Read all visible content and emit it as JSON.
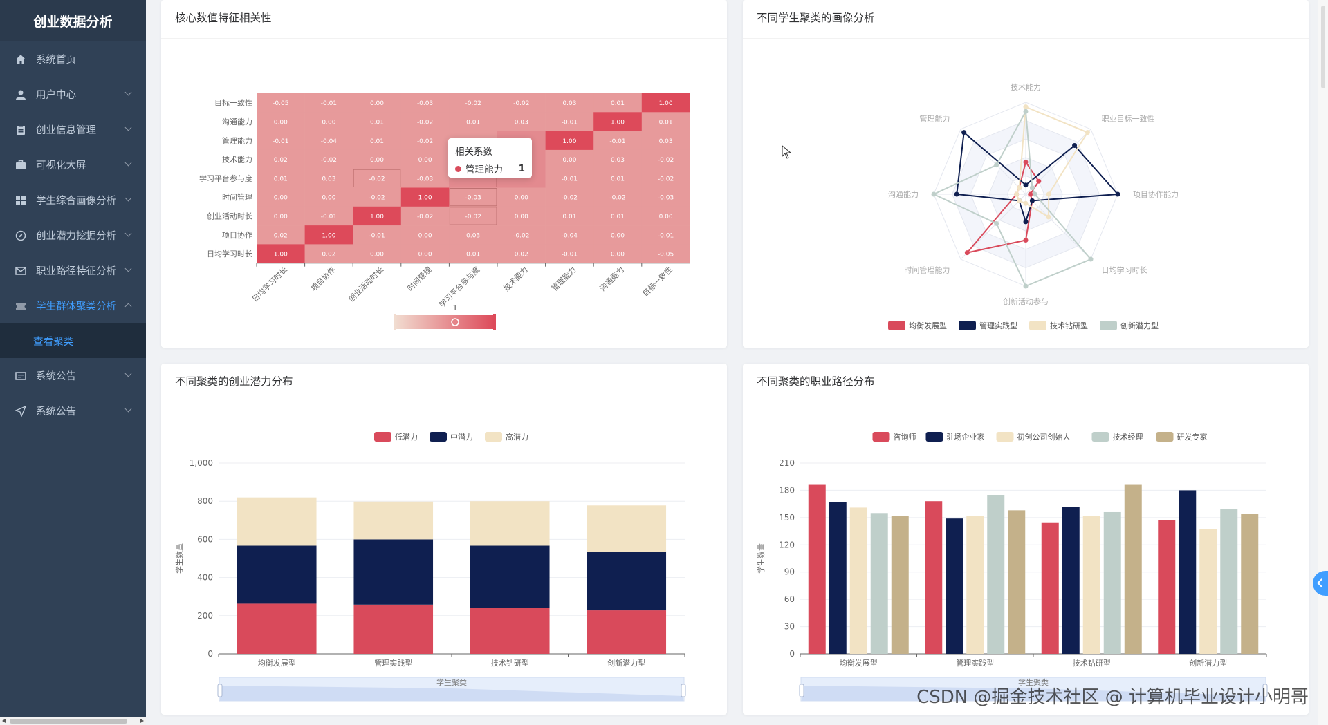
{
  "sidebar": {
    "logo": "创业数据分析",
    "items": [
      {
        "label": "系统首页",
        "icon": "home-icon",
        "chevron": false
      },
      {
        "label": "用户中心",
        "icon": "user-icon",
        "chevron": true
      },
      {
        "label": "创业信息管理",
        "icon": "clipboard-icon",
        "chevron": true
      },
      {
        "label": "可视化大屏",
        "icon": "briefcase-icon",
        "chevron": true
      },
      {
        "label": "学生综合画像分析",
        "icon": "grid-icon",
        "chevron": true
      },
      {
        "label": "创业潜力挖掘分析",
        "icon": "compass-icon",
        "chevron": true
      },
      {
        "label": "职业路径特征分析",
        "icon": "mail-icon",
        "chevron": true
      },
      {
        "label": "学生群体聚类分析",
        "icon": "ticket-icon",
        "chevron": true,
        "active": true
      }
    ],
    "submenu": "查看聚类",
    "items_after": [
      {
        "label": "系统公告",
        "icon": "notice-icon",
        "chevron": true
      },
      {
        "label": "系统公告",
        "icon": "send-icon",
        "chevron": true
      }
    ]
  },
  "cards": {
    "heatmap_title": "核心数值特征相关性",
    "radar_title": "不同学生聚类的画像分析",
    "stacked_title": "不同聚类的创业潜力分布",
    "grouped_title": "不同聚类的职业路径分布"
  },
  "tooltip": {
    "title": "相关系数",
    "name": "管理能力",
    "value": "1"
  },
  "watermark": {
    "prefix": "CSDN @",
    "main": "掘金技术社区 @ 计算机毕业设计小明哥"
  },
  "colors": {
    "red": "#d94a5b",
    "navy": "#0f1f50",
    "cream": "#f2e3c4",
    "gray": "#bfcfca",
    "tan": "#c4b18a"
  },
  "chart_data": [
    {
      "type": "heatmap",
      "title": "核心数值特征相关性",
      "x_labels": [
        "日均学习时长",
        "项目协作",
        "创业活动时长",
        "时间管理",
        "学习平台参与度",
        "技术能力",
        "管理能力",
        "沟通能力",
        "目标一致性"
      ],
      "y_labels": [
        "日均学习时长",
        "项目协作",
        "创业活动时长",
        "时间管理",
        "学习平台参与度",
        "技术能力",
        "管理能力",
        "沟通能力",
        "目标一致性"
      ],
      "matrix_top_to_bottom": [
        [
          "-0.05",
          "-0.01",
          "0.00",
          "-0.03",
          "-0.02",
          "-0.02",
          "0.03",
          "0.01",
          "1.00"
        ],
        [
          "0.00",
          "0.00",
          "0.01",
          "-0.02",
          "0.01",
          "0.03",
          "-0.01",
          "1.00",
          "0.01"
        ],
        [
          "-0.01",
          "-0.04",
          "0.01",
          "-0.02",
          "-0.02",
          "",
          "1.00",
          "-0.01",
          "0.03"
        ],
        [
          "0.02",
          "-0.02",
          "0.00",
          "0.00",
          "",
          "",
          "0.00",
          "0.03",
          "-0.02"
        ],
        [
          "0.01",
          "0.03",
          "-0.02",
          "-0.03",
          "",
          "",
          "-0.01",
          "0.01",
          "-0.02"
        ],
        [
          "0.00",
          "0.00",
          "-0.02",
          "1.00",
          "-0.03",
          "0.00",
          "-0.02",
          "-0.02",
          "-0.03"
        ],
        [
          "0.00",
          "-0.01",
          "1.00",
          "-0.02",
          "-0.02",
          "0.00",
          "0.01",
          "0.01",
          "0.00"
        ],
        [
          "0.02",
          "1.00",
          "-0.01",
          "0.00",
          "0.03",
          "-0.02",
          "-0.04",
          "0.00",
          "-0.01"
        ],
        [
          "1.00",
          "0.02",
          "0.00",
          "0.00",
          "0.01",
          "0.02",
          "-0.01",
          "0.00",
          "-0.05"
        ]
      ],
      "visual_map_label": "1"
    },
    {
      "type": "radar",
      "title": "不同学生聚类的画像分析",
      "indicators": [
        "技术能力",
        "职业目标一致性",
        "项目协作能力",
        "日均学习时长",
        "创新活动参与",
        "时间管理能力",
        "沟通能力",
        "管理能力"
      ],
      "series": [
        {
          "name": "均衡发展型",
          "values": [
            0.35,
            0.2,
            0.05,
            0.1,
            0.5,
            0.9,
            0.1,
            0.1
          ]
        },
        {
          "name": "管理实践型",
          "values": [
            0.1,
            0.75,
            1.0,
            0.1,
            0.3,
            0.1,
            0.75,
            0.95
          ]
        },
        {
          "name": "技术钻研型",
          "values": [
            0.95,
            0.95,
            0.25,
            0.35,
            0.1,
            0.1,
            0.1,
            0.1
          ]
        },
        {
          "name": "创新潜力型",
          "values": [
            0.9,
            0.1,
            0.1,
            1.0,
            1.0,
            0.45,
            1.0,
            0.45
          ]
        }
      ]
    },
    {
      "type": "bar",
      "title": "不同聚类的创业潜力分布",
      "stacked": true,
      "categories": [
        "均衡发展型",
        "管理实践型",
        "技术钻研型",
        "创新潜力型"
      ],
      "series": [
        {
          "name": "低潜力",
          "values": [
            263,
            258,
            240,
            228
          ]
        },
        {
          "name": "中潜力",
          "values": [
            304,
            342,
            327,
            306
          ]
        },
        {
          "name": "高潜力",
          "values": [
            253,
            198,
            233,
            244
          ]
        }
      ],
      "xlabel": "学生聚类",
      "ylabel": "学生数量",
      "ylim": [
        0,
        1000
      ],
      "yticks": [
        "0",
        "200",
        "400",
        "600",
        "800",
        "1,000"
      ]
    },
    {
      "type": "bar",
      "title": "不同聚类的职业路径分布",
      "categories": [
        "均衡发展型",
        "管理实践型",
        "技术钻研型",
        "创新潜力型"
      ],
      "series": [
        {
          "name": "咨询师",
          "values": [
            186,
            168,
            144,
            147
          ]
        },
        {
          "name": "驻场企业家",
          "values": [
            167,
            149,
            162,
            180
          ]
        },
        {
          "name": "初创公司创始人",
          "values": [
            161,
            152,
            152,
            137
          ]
        },
        {
          "name": "技术经理",
          "values": [
            155,
            175,
            156,
            159
          ]
        },
        {
          "name": "研发专家",
          "values": [
            152,
            158,
            186,
            154
          ]
        }
      ],
      "xlabel": "学生聚类",
      "ylabel": "学生数量",
      "ylim": [
        0,
        210
      ],
      "yticks": [
        "0",
        "30",
        "60",
        "90",
        "120",
        "150",
        "180",
        "210"
      ]
    }
  ]
}
